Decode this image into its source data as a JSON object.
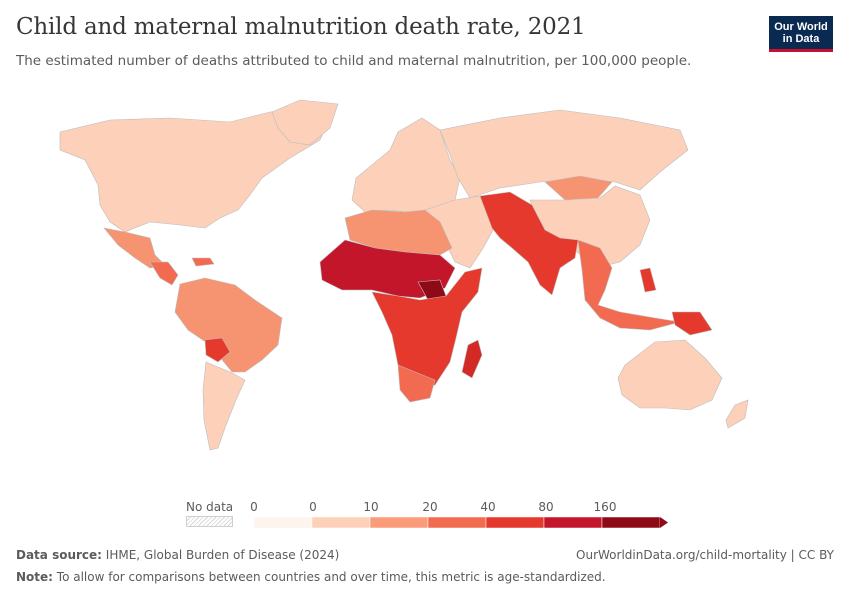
{
  "header": {
    "title": "Child and maternal malnutrition death rate, 2021",
    "subtitle": "The estimated number of deaths attributed to child and maternal malnutrition, per 100,000 people."
  },
  "logo": {
    "line1": "Our World",
    "line2": "in Data"
  },
  "legend": {
    "no_data_label": "No data",
    "ticks": [
      "0",
      "0",
      "10",
      "20",
      "40",
      "80",
      "160"
    ],
    "colors": [
      "#fef4ee",
      "#fcd0b9",
      "#fb9b7a",
      "#f26b51",
      "#e4392c",
      "#c3162a",
      "#8e0a17"
    ]
  },
  "footer": {
    "source_label": "Data source:",
    "source_text": "IHME, Global Burden of Disease (2024)",
    "url_text": "OurWorldinData.org/child-mortality | CC BY",
    "note_label": "Note:",
    "note_text": "To allow for comparisons between countries and over time, this metric is age-standardized."
  },
  "map_regions": [
    {
      "name": "North America",
      "color": "#fcd0b9"
    },
    {
      "name": "Greenland",
      "color": "#fcd0b9"
    },
    {
      "name": "Mexico",
      "color": "#f69370"
    },
    {
      "name": "Central America",
      "color": "#f26b51"
    },
    {
      "name": "South America",
      "color": "#f69370"
    },
    {
      "name": "Bolivia",
      "color": "#e4392c"
    },
    {
      "name": "Southern Cone",
      "color": "#fcd0b9"
    },
    {
      "name": "Europe",
      "color": "#fcd0b9"
    },
    {
      "name": "Russia and Central Asia",
      "color": "#fcd0b9"
    },
    {
      "name": "Mongolia",
      "color": "#f69370"
    },
    {
      "name": "China",
      "color": "#fcd0b9"
    },
    {
      "name": "North Africa",
      "color": "#f69370"
    },
    {
      "name": "Sahel and West Africa",
      "color": "#c3162a"
    },
    {
      "name": "South Sudan",
      "color": "#8e0a17"
    },
    {
      "name": "Sub-Saharan Africa",
      "color": "#e4392c"
    },
    {
      "name": "Southern Africa",
      "color": "#f26b51"
    },
    {
      "name": "Madagascar",
      "color": "#d42a25"
    },
    {
      "name": "Middle East",
      "color": "#fcd0b9"
    },
    {
      "name": "South Asia",
      "color": "#e4392c"
    },
    {
      "name": "Southeast Asia",
      "color": "#f26b51"
    },
    {
      "name": "Papua New Guinea",
      "color": "#e4392c"
    },
    {
      "name": "Australia",
      "color": "#fcd0b9"
    },
    {
      "name": "New Zealand",
      "color": "#fcd0b9"
    }
  ]
}
